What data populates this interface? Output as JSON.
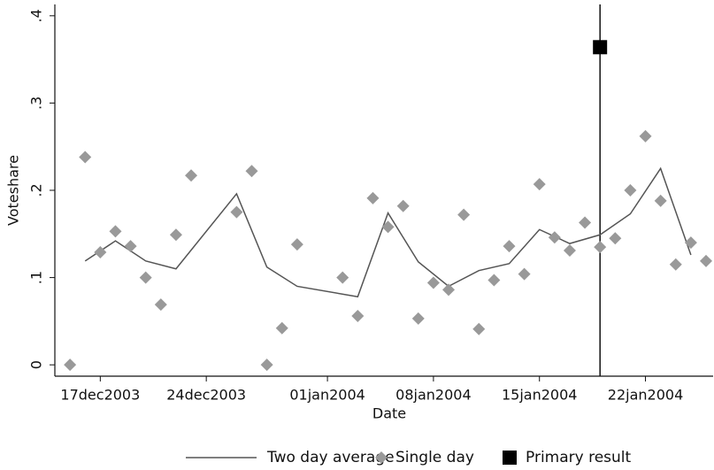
{
  "chart_data": {
    "type": "line",
    "x_label": "Date",
    "y_label": "Voteshare",
    "xlim": [
      "2003-12-14",
      "2004-01-26"
    ],
    "ylim": [
      -0.013,
      0.413
    ],
    "xticks": [
      {
        "value": "2003-12-17",
        "label": "17dec2003"
      },
      {
        "value": "2003-12-24",
        "label": "24dec2003"
      },
      {
        "value": "2004-01-01",
        "label": "01jan2004"
      },
      {
        "value": "2004-01-08",
        "label": "08jan2004"
      },
      {
        "value": "2004-01-15",
        "label": "15jan2004"
      },
      {
        "value": "2004-01-22",
        "label": "22jan2004"
      }
    ],
    "yticks": [
      0,
      {
        "value": 0.1,
        "label": ".1"
      },
      {
        "value": 0.2,
        "label": ".2"
      },
      {
        "value": 0.3,
        "label": ".3"
      },
      {
        "value": 0.4,
        "label": ".4"
      }
    ],
    "vline": "2004-01-19",
    "series": [
      {
        "name": "Two day average",
        "type": "line",
        "color": "#555555",
        "x": [
          "2003-12-16",
          "2003-12-18",
          "2003-12-20",
          "2003-12-22",
          "2003-12-26",
          "2003-12-28",
          "2003-12-30",
          "2004-01-03",
          "2004-01-05",
          "2004-01-07",
          "2004-01-09",
          "2004-01-11",
          "2004-01-13",
          "2004-01-15",
          "2004-01-17",
          "2004-01-19",
          "2004-01-21",
          "2004-01-23",
          "2004-01-25"
        ],
        "values": [
          0.119,
          0.142,
          0.119,
          0.11,
          0.196,
          0.112,
          0.09,
          0.078,
          0.174,
          0.118,
          0.09,
          0.108,
          0.116,
          0.155,
          0.139,
          0.149,
          0.173,
          0.225,
          0.126
        ]
      },
      {
        "name": "Single day",
        "type": "scatter",
        "color": "#999999",
        "x": [
          "2003-12-15",
          "2003-12-16",
          "2003-12-17",
          "2003-12-18",
          "2003-12-19",
          "2003-12-20",
          "2003-12-21",
          "2003-12-22",
          "2003-12-23",
          "2003-12-26",
          "2003-12-27",
          "2003-12-28",
          "2003-12-29",
          "2003-12-30",
          "2004-01-02",
          "2004-01-03",
          "2004-01-04",
          "2004-01-05",
          "2004-01-06",
          "2004-01-07",
          "2004-01-08",
          "2004-01-09",
          "2004-01-10",
          "2004-01-11",
          "2004-01-12",
          "2004-01-13",
          "2004-01-14",
          "2004-01-15",
          "2004-01-16",
          "2004-01-17",
          "2004-01-18",
          "2004-01-19",
          "2004-01-20",
          "2004-01-21",
          "2004-01-22",
          "2004-01-23",
          "2004-01-24",
          "2004-01-25",
          "2004-01-26"
        ],
        "values": [
          0.0,
          0.238,
          0.129,
          0.153,
          0.136,
          0.1,
          0.069,
          0.149,
          0.217,
          0.175,
          0.222,
          0.0,
          0.042,
          0.138,
          0.1,
          0.056,
          0.191,
          0.158,
          0.182,
          0.053,
          0.094,
          0.086,
          0.172,
          0.041,
          0.097,
          0.136,
          0.104,
          0.207,
          0.146,
          0.131,
          0.163,
          0.135,
          0.145,
          0.2,
          0.262,
          0.188,
          0.115,
          0.14,
          0.119
        ]
      },
      {
        "name": "Primary result",
        "type": "square",
        "color": "#000000",
        "x": [
          "2004-01-19"
        ],
        "values": [
          0.364
        ]
      }
    ]
  }
}
